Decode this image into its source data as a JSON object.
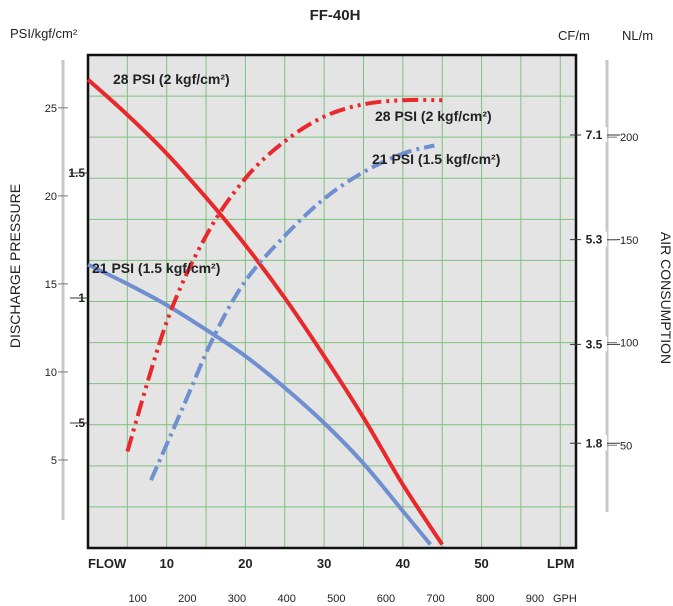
{
  "chart_data": {
    "type": "line",
    "title": "FF-40H",
    "left_unit_label": "PSI/kgf/cm²",
    "right_unit_labels": [
      "CF/m",
      "NL/m"
    ],
    "ylabel": "DISCHARGE PRESSURE",
    "y2label": "AIR CONSUMPTION",
    "flow_label": "FLOW",
    "x_unit_label": "LPM",
    "gph_unit_label": "GPH",
    "x_ticks": [
      "10",
      "20",
      "30",
      "40",
      "50"
    ],
    "gph_ticks": [
      "100",
      "200",
      "300",
      "400",
      "500",
      "600",
      "700",
      "800",
      "900"
    ],
    "psi_ticks": [
      "5",
      "10",
      "15",
      "20",
      "25"
    ],
    "kgf_ticks": [
      ".5",
      "1",
      "1.5"
    ],
    "cfm_ticks": [
      "1.8",
      "3.5",
      "5.3",
      "7.1"
    ],
    "nlm_ticks": [
      "50",
      "100",
      "150",
      "200"
    ],
    "xlim": [
      0,
      62
    ],
    "ylim_psi": [
      0,
      28
    ],
    "ylim_nlm": [
      0,
      240
    ],
    "grid": true,
    "series": [
      {
        "name": "28 PSI  (2 kgf/cm²)",
        "kind": "discharge-pressure",
        "color": "#e8282b",
        "style": "solid",
        "x": [
          0,
          5,
          10,
          15,
          20,
          25,
          30,
          35,
          40,
          45
        ],
        "y": [
          26.6,
          24.6,
          22.4,
          19.9,
          17.2,
          14.2,
          10.9,
          7.4,
          3.6,
          0.2
        ]
      },
      {
        "name": "21 PSI (1.5 kgf/cm²)",
        "kind": "discharge-pressure",
        "color": "#6f8fd0",
        "style": "solid",
        "x": [
          0,
          5,
          10,
          15,
          20,
          25,
          30,
          35,
          40,
          43.5
        ],
        "y": [
          16.1,
          15.0,
          13.8,
          12.4,
          10.9,
          9.1,
          7.1,
          4.8,
          2.1,
          0.2
        ]
      },
      {
        "name": "28 PSI  (2 kgf/cm²)",
        "kind": "air-consumption",
        "color": "#e8282b",
        "style": "dash-dot-dot",
        "x": [
          5,
          10,
          15,
          20,
          25,
          30,
          35,
          40,
          45
        ],
        "y": [
          47,
          110,
          152,
          180,
          198,
          210,
          216,
          218,
          218
        ]
      },
      {
        "name": "21 PSI (1.5 kgf/cm²)",
        "kind": "air-consumption",
        "color": "#6f8fd0",
        "style": "dash-dot",
        "x": [
          8,
          12,
          16,
          20,
          25,
          30,
          35,
          40,
          44
        ],
        "y": [
          33,
          68,
          103,
          130,
          152,
          170,
          183,
          192,
          196
        ]
      }
    ]
  }
}
